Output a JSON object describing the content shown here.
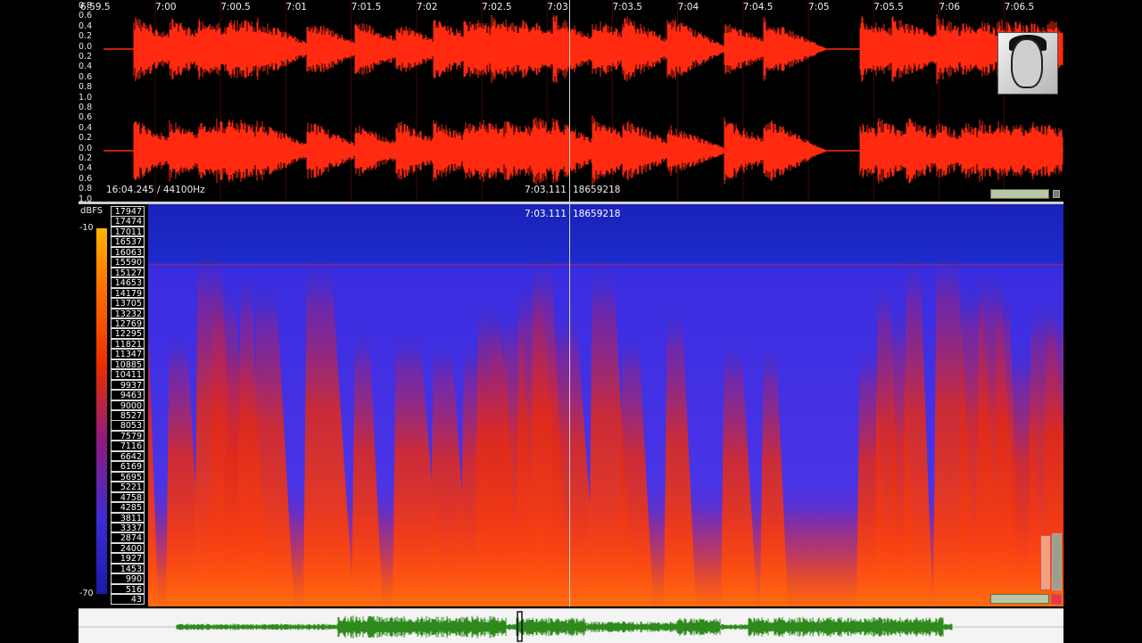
{
  "waveform": {
    "y_labels": [
      "0.8",
      "0.6",
      "0.4",
      "0.2",
      "0.0",
      "0.2",
      "0.4",
      "0.6",
      "0.8",
      "1.0",
      "0.8",
      "0.6",
      "0.4",
      "0.2",
      "0.0",
      "0.2",
      "0.4",
      "0.6",
      "0.8",
      "1.0"
    ],
    "time_labels": [
      "6:59.5",
      "7:00",
      "7:00.5",
      "7:01",
      "7:01.5",
      "7:02",
      "7:02.5",
      "7:03",
      "7:03.5",
      "7:04",
      "7:04.5",
      "7:05",
      "7:05.5",
      "7:06",
      "7:06.5"
    ],
    "status_left": "16:04.245 / 44100Hz",
    "cursor_time": "7:03.111",
    "cursor_frame": "18659218",
    "color": "#ff2a10"
  },
  "spectrogram": {
    "unit_label": "dBFS",
    "db_top": "-10",
    "db_bottom": "-70",
    "cursor_time": "7:03.111",
    "cursor_frame": "18659218",
    "frequencies": [
      "17947",
      "17474",
      "17011",
      "16537",
      "16063",
      "15590",
      "15127",
      "14653",
      "14179",
      "13705",
      "13232",
      "12769",
      "12295",
      "11821",
      "11347",
      "10885",
      "10411",
      "9937",
      "9463",
      "9000",
      "8527",
      "8053",
      "7579",
      "7116",
      "6642",
      "6169",
      "5695",
      "5221",
      "4758",
      "4285",
      "3811",
      "3337",
      "2874",
      "2400",
      "1927",
      "1453",
      "990",
      "516",
      "43"
    ]
  },
  "overview": {
    "color": "#2f8a1e"
  },
  "thumbnail": {
    "label": "avatar"
  }
}
